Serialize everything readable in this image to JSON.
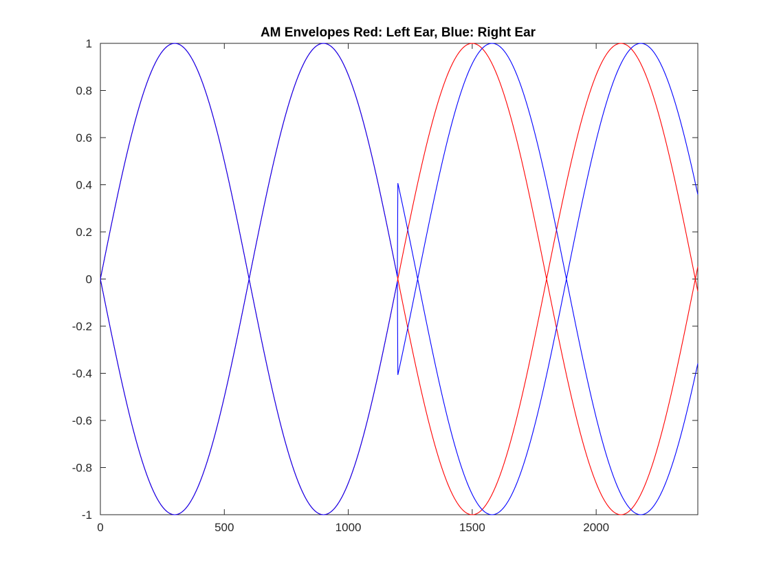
{
  "chart_data": {
    "type": "line",
    "title": "AM Envelopes Red: Left Ear, Blue: Right Ear",
    "xlabel": "",
    "ylabel": "",
    "xlim": [
      0,
      2410
    ],
    "ylim": [
      -1,
      1
    ],
    "x_ticks": [
      0,
      500,
      1000,
      1500,
      2000
    ],
    "y_ticks": [
      -1,
      -0.8,
      -0.6,
      -0.4,
      -0.2,
      0,
      0.2,
      0.4,
      0.6,
      0.8,
      1
    ],
    "grid": false,
    "legend": "none",
    "sample_period": 1200,
    "series": [
      {
        "color": "#ff0000",
        "form": "sin",
        "amplitude": 1,
        "phase_shift_start": 1200,
        "phase_shift": 0
      },
      {
        "color": "#ff0000",
        "form": "sin",
        "amplitude": -1,
        "phase_shift_start": 1200,
        "phase_shift": 0
      },
      {
        "color": "#0000ff",
        "form": "sin",
        "amplitude": 1,
        "phase_shift_start": 1200,
        "phase_shift": 80
      },
      {
        "color": "#0000ff",
        "form": "sin",
        "amplitude": -1,
        "phase_shift_start": 1200,
        "phase_shift": 80
      }
    ],
    "points": {
      "x": [
        0,
        100,
        200,
        300,
        400,
        500,
        600,
        700,
        800,
        900,
        1000,
        1100,
        1200,
        1300,
        1400,
        1500,
        1600,
        1700,
        1800,
        1900,
        2000,
        2100,
        2200,
        2300,
        2410
      ],
      "red_upper": [
        0,
        0.5,
        0.87,
        1,
        0.87,
        0.5,
        0,
        -0.5,
        -0.87,
        -1,
        -0.87,
        -0.5,
        0,
        0.5,
        0.87,
        1,
        0.87,
        0.5,
        0,
        -0.5,
        -0.87,
        -1,
        -0.87,
        -0.5,
        0
      ],
      "blue_upper": [
        0,
        0.5,
        0.87,
        1,
        0.87,
        0.5,
        0,
        -0.5,
        -0.87,
        -1,
        -0.87,
        -0.5,
        0,
        0.31,
        0.74,
        0.98,
        0.98,
        0.74,
        0.31,
        -0.21,
        -0.67,
        -0.95,
        -0.99,
        -0.81,
        -0.38
      ]
    }
  }
}
